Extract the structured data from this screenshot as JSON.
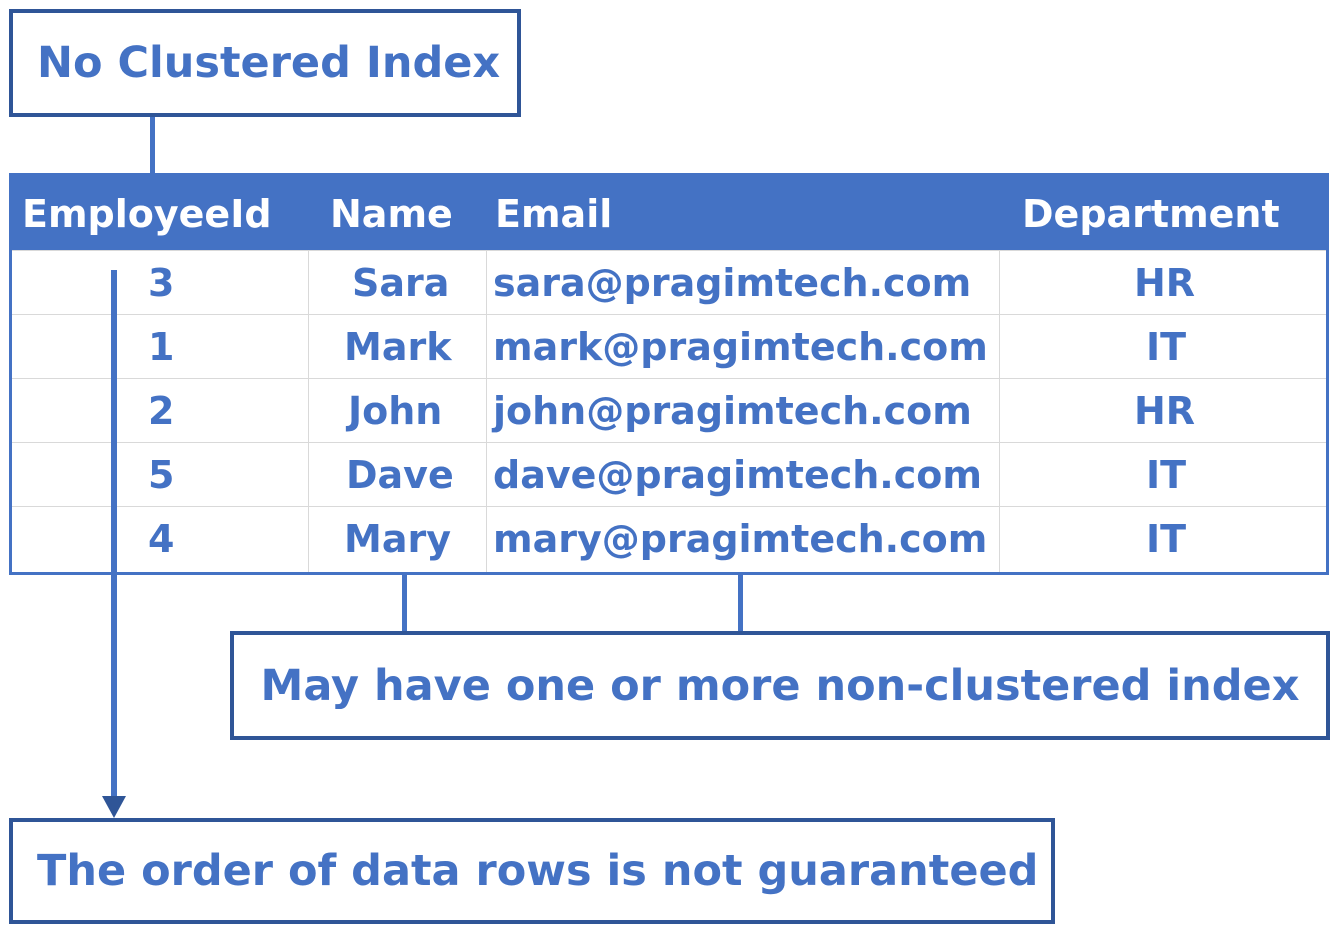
{
  "labels": {
    "no_clustered": "No Clustered Index",
    "nonclustered": "May have one or more non-clustered index",
    "order": "The order of data rows is not guaranteed"
  },
  "table": {
    "headers": [
      "EmployeeId",
      "Name",
      "Email",
      "Department"
    ],
    "rows": [
      [
        "3",
        "Sara",
        "sara@pragimtech.com",
        "HR"
      ],
      [
        "1",
        "Mark",
        "mark@pragimtech.com",
        "IT"
      ],
      [
        "2",
        "John",
        "john@pragimtech.com",
        "HR"
      ],
      [
        "5",
        "Dave",
        "dave@pragimtech.com",
        "IT"
      ],
      [
        "4",
        "Mary",
        "mary@pragimtech.com",
        "IT"
      ]
    ]
  },
  "colors": {
    "accent": "#4472C4",
    "border": "#2F5597",
    "header_text": "#FFFFFF"
  }
}
